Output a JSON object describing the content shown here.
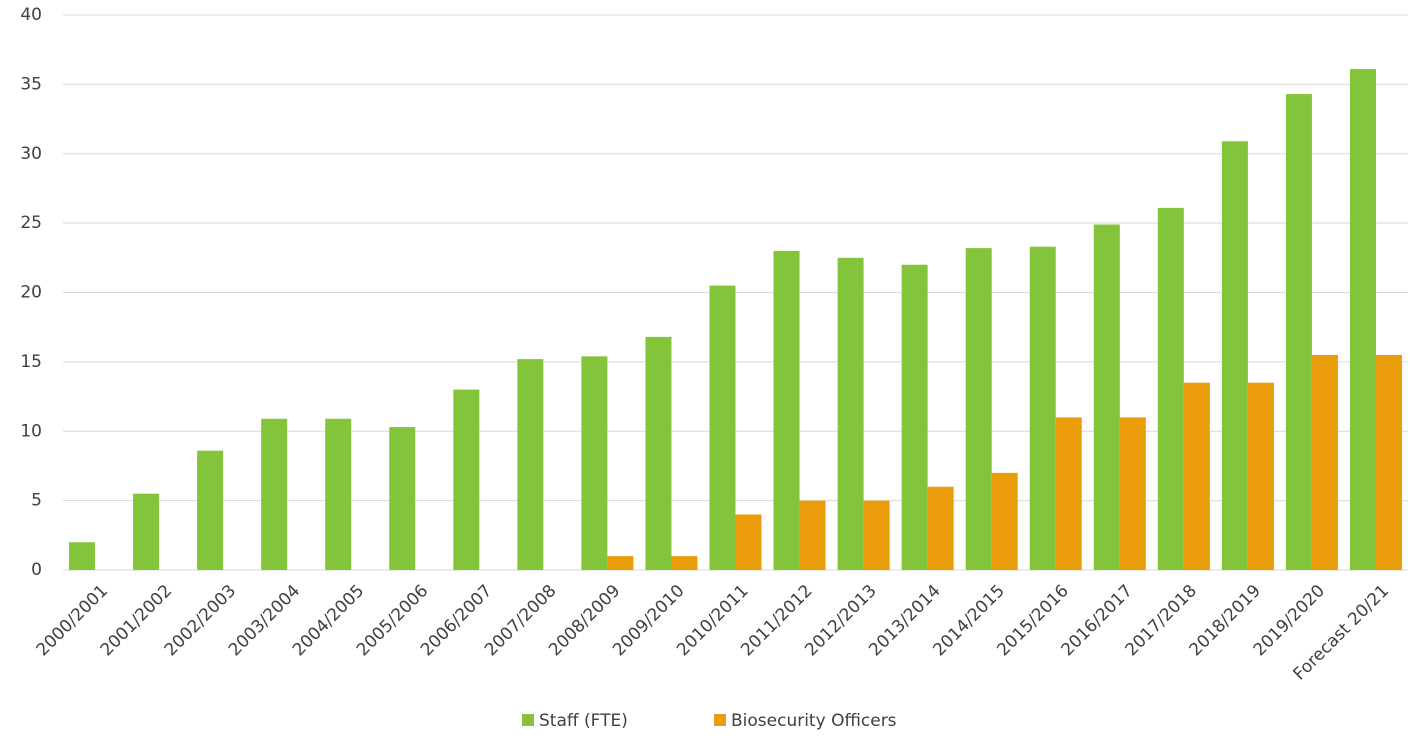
{
  "chart_data": {
    "type": "bar",
    "categories": [
      "2000/2001",
      "2001/2002",
      "2002/2003",
      "2003/2004",
      "2004/2005",
      "2005/2006",
      "2006/2007",
      "2007/2008",
      "2008/2009",
      "2009/2010",
      "2010/2011",
      "2011/2012",
      "2012/2013",
      "2013/2014",
      "2014/2015",
      "2015/2016",
      "2016/2017",
      "2017/2018",
      "2018/2019",
      "2019/2020",
      "Forecast 20/21"
    ],
    "series": [
      {
        "name": "Staff (FTE)",
        "color": "#84c43a",
        "values": [
          2,
          5.5,
          8.6,
          10.9,
          10.9,
          10.3,
          13,
          15.2,
          15.4,
          16.8,
          20.5,
          23,
          22.5,
          22,
          23.2,
          23.3,
          24.9,
          26.1,
          30.9,
          34.3,
          36.1
        ]
      },
      {
        "name": "Biosecurity Officers",
        "color": "#eb9c0a",
        "values": [
          null,
          null,
          null,
          null,
          null,
          null,
          null,
          null,
          1,
          1,
          4,
          5,
          5,
          6,
          7,
          11,
          11,
          13.5,
          13.5,
          15.5,
          15.5
        ]
      }
    ],
    "ylim": [
      0,
      40
    ],
    "yticks": [
      0,
      5,
      10,
      15,
      20,
      25,
      30,
      35,
      40
    ],
    "grid": true,
    "legend": "bottom"
  }
}
